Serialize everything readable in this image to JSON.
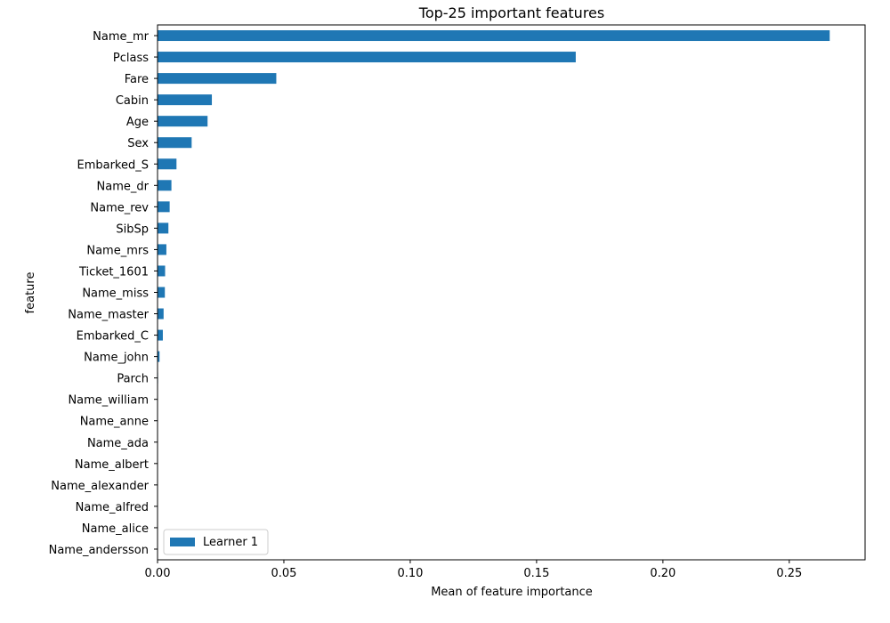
{
  "chart_data": {
    "type": "bar",
    "orientation": "horizontal",
    "title": "Top-25 important features",
    "xlabel": "Mean of feature importance",
    "ylabel": "feature",
    "xlim": [
      0,
      0.28
    ],
    "xticks": [
      0.0,
      0.05,
      0.1,
      0.15,
      0.2,
      0.25
    ],
    "xtick_labels": [
      "0.00",
      "0.05",
      "0.10",
      "0.15",
      "0.20",
      "0.25"
    ],
    "grid": false,
    "legend_position": "lower-left",
    "bar_color": "#1f77b4",
    "categories": [
      "Name_mr",
      "Pclass",
      "Fare",
      "Cabin",
      "Age",
      "Sex",
      "Embarked_S",
      "Name_dr",
      "Name_rev",
      "SibSp",
      "Name_mrs",
      "Ticket_1601",
      "Name_miss",
      "Name_master",
      "Embarked_C",
      "Name_john",
      "Parch",
      "Name_william",
      "Name_anne",
      "Name_ada",
      "Name_albert",
      "Name_alexander",
      "Name_alfred",
      "Name_alice",
      "Name_andersson"
    ],
    "series": [
      {
        "name": "Learner 1",
        "values": [
          0.266,
          0.1655,
          0.047,
          0.0215,
          0.0198,
          0.0135,
          0.0075,
          0.0055,
          0.0048,
          0.0043,
          0.0035,
          0.003,
          0.0029,
          0.0024,
          0.0021,
          0.0008,
          0.0002,
          0.0001,
          0.0,
          0.0,
          0.0,
          0.0,
          0.0,
          0.0,
          0.0
        ]
      }
    ]
  }
}
